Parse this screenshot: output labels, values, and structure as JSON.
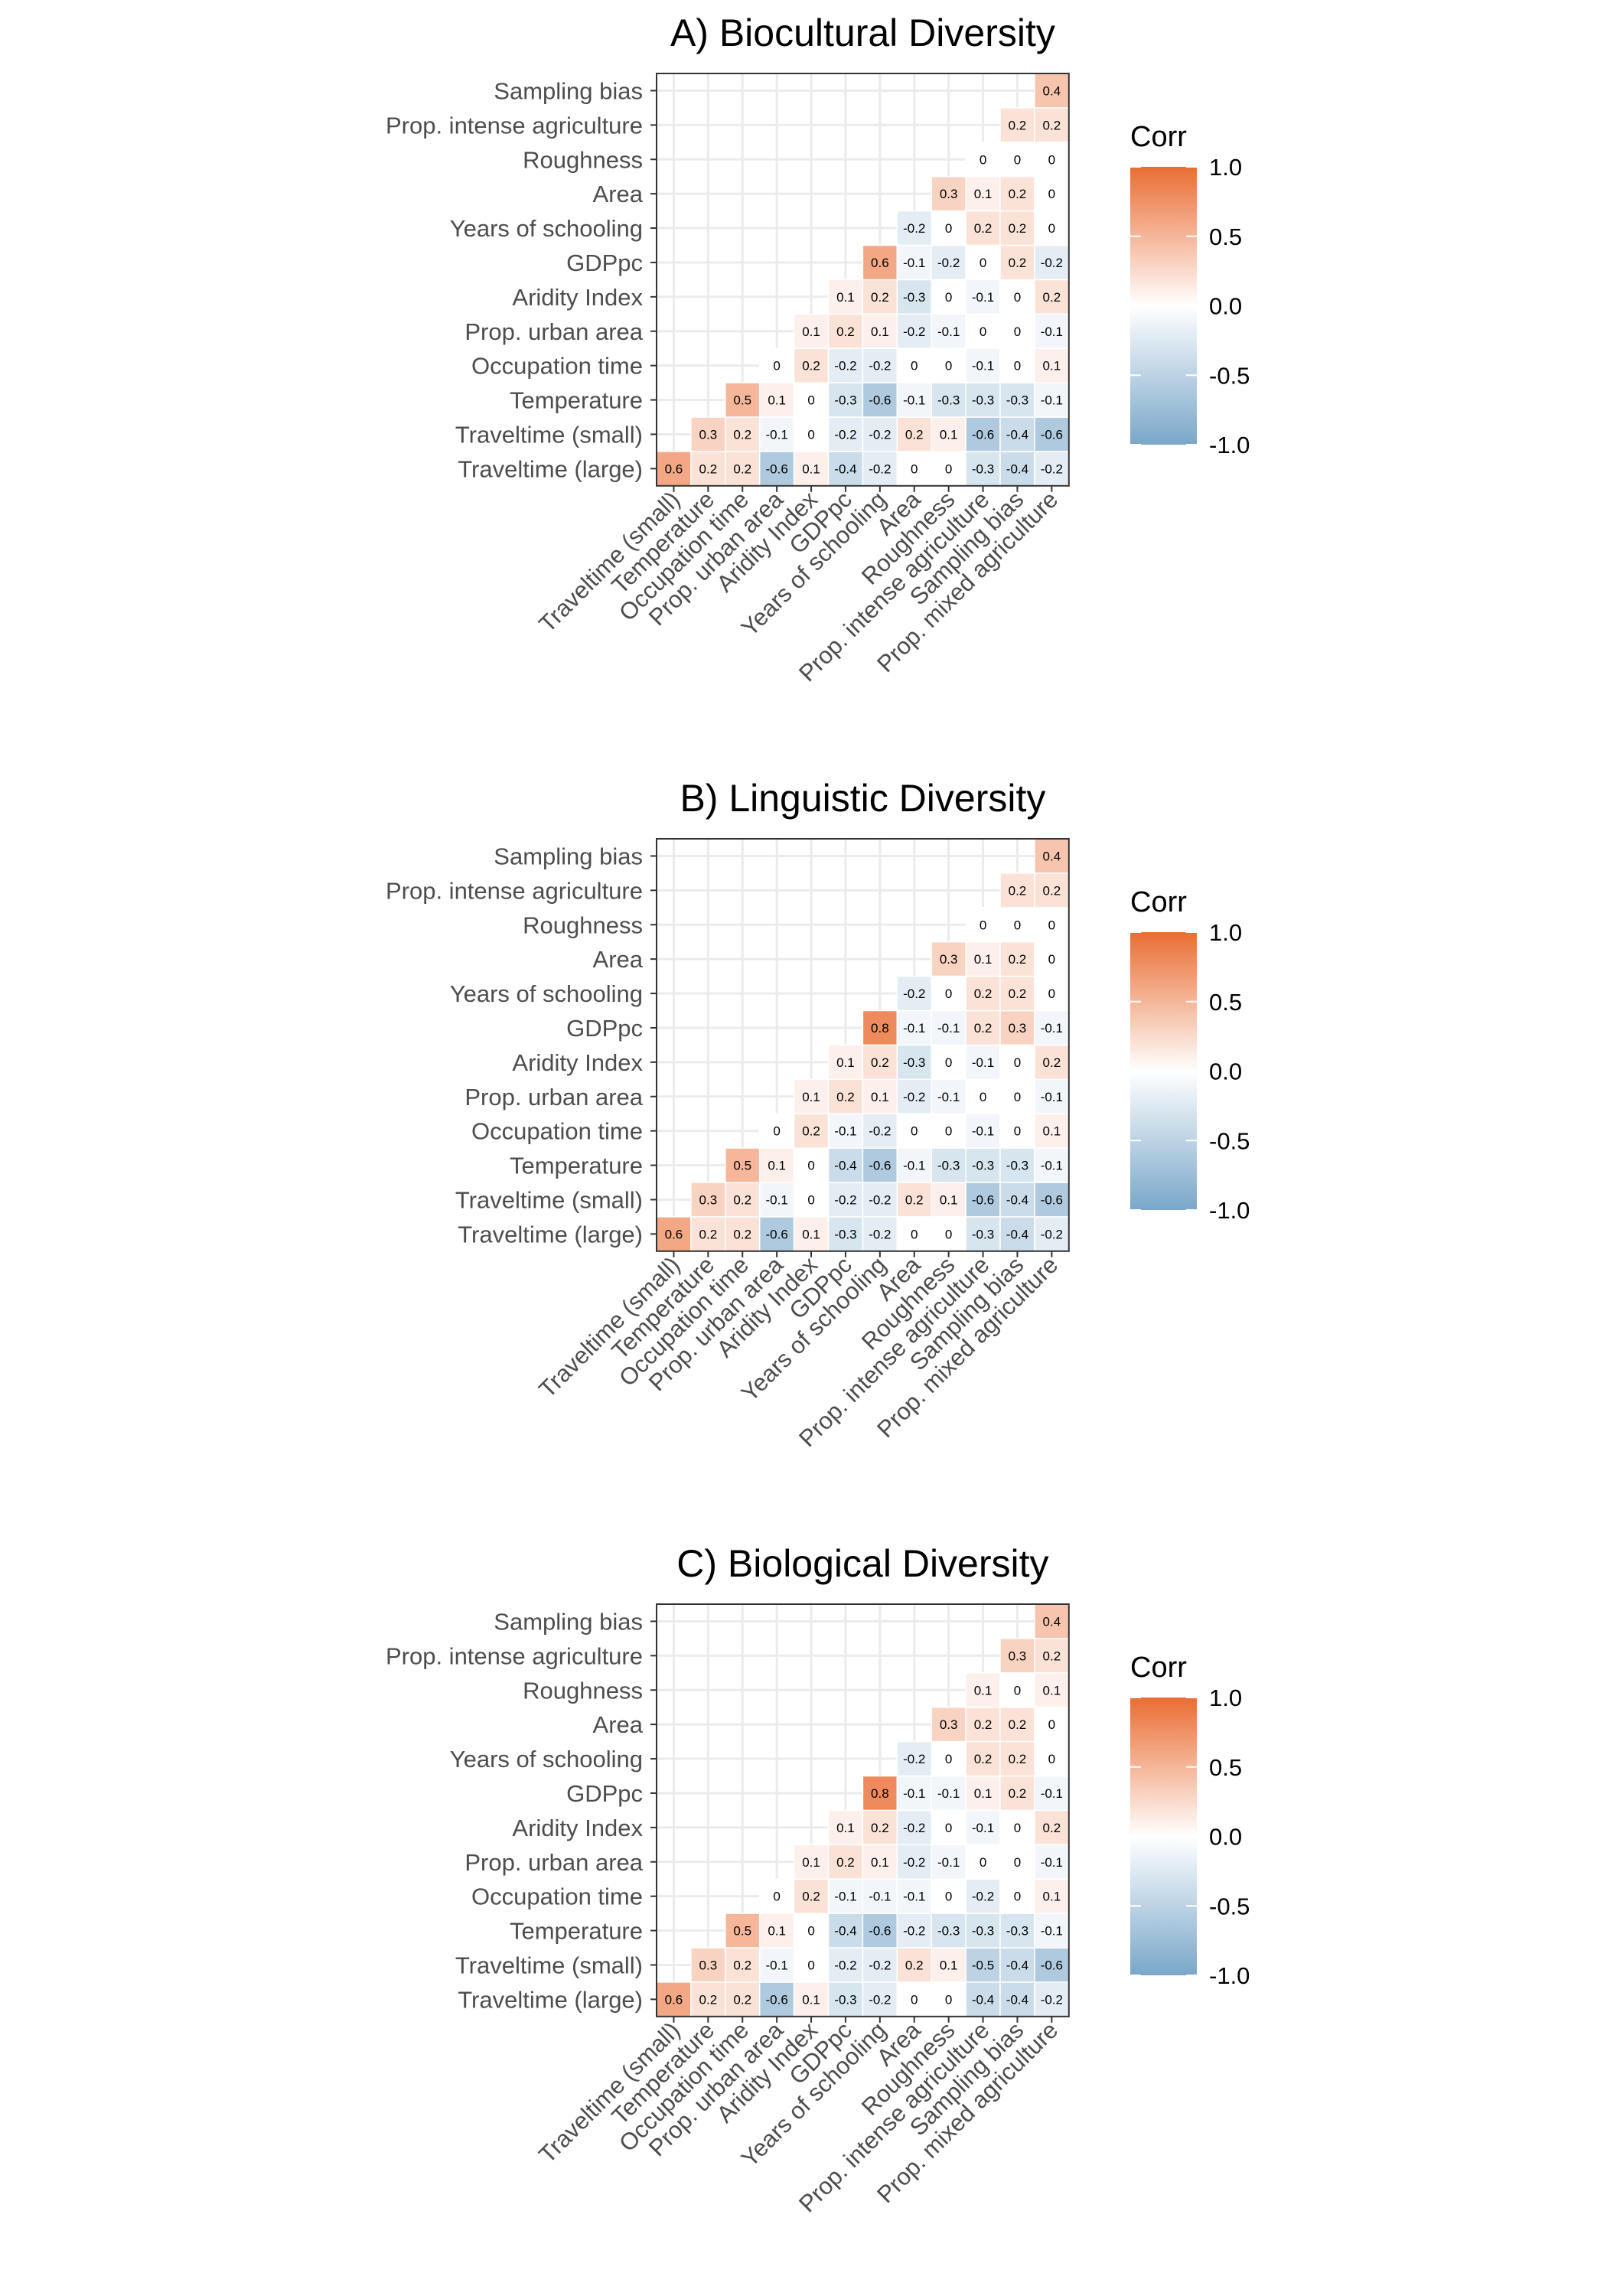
{
  "colors": {
    "negative": "#7aa7c9",
    "zero": "#ffffff",
    "positive": "#ea6d33",
    "grid": "#ebebeb",
    "panel_border": "#333333",
    "text": "#4d4d4d",
    "title": "#000000"
  },
  "chart_data": [
    {
      "type": "heatmap",
      "title": "A) Biocultural Diversity",
      "rows": [
        "Traveltime (large)",
        "Traveltime (small)",
        "Temperature",
        "Occupation time",
        "Prop. urban area",
        "Aridity Index",
        "GDPpc",
        "Years of schooling",
        "Area",
        "Roughness",
        "Prop. intense agriculture",
        "Sampling bias"
      ],
      "columns": [
        "Traveltime (small)",
        "Temperature",
        "Occupation time",
        "Prop. urban area",
        "Aridity Index",
        "GDPpc",
        "Years of schooling",
        "Area",
        "Roughness",
        "Prop. intense agriculture",
        "Sampling bias",
        "Prop. mixed agriculture"
      ],
      "values": [
        [
          0.6,
          0.2,
          0.2,
          -0.6,
          0.1,
          -0.4,
          -0.2,
          0,
          0,
          -0.3,
          -0.4,
          -0.2
        ],
        [
          null,
          0.3,
          0.2,
          -0.1,
          0,
          -0.2,
          -0.2,
          0.2,
          0.1,
          -0.6,
          -0.4,
          -0.6
        ],
        [
          null,
          null,
          0.5,
          0.1,
          0,
          -0.3,
          -0.6,
          -0.1,
          -0.3,
          -0.3,
          -0.3,
          -0.1
        ],
        [
          null,
          null,
          null,
          0,
          0.2,
          -0.2,
          -0.2,
          0,
          0,
          -0.1,
          0,
          0.1
        ],
        [
          null,
          null,
          null,
          null,
          0.1,
          0.2,
          0.1,
          -0.2,
          -0.1,
          0,
          0,
          -0.1
        ],
        [
          null,
          null,
          null,
          null,
          null,
          0.1,
          0.2,
          -0.3,
          0,
          -0.1,
          0,
          0.2
        ],
        [
          null,
          null,
          null,
          null,
          null,
          null,
          0.6,
          -0.1,
          -0.2,
          0,
          0.2,
          -0.2
        ],
        [
          null,
          null,
          null,
          null,
          null,
          null,
          null,
          -0.2,
          0,
          0.2,
          0.2,
          0
        ],
        [
          null,
          null,
          null,
          null,
          null,
          null,
          null,
          null,
          0.3,
          0.1,
          0.2,
          0
        ],
        [
          null,
          null,
          null,
          null,
          null,
          null,
          null,
          null,
          null,
          0,
          0,
          0
        ],
        [
          null,
          null,
          null,
          null,
          null,
          null,
          null,
          null,
          null,
          null,
          0.2,
          0.2
        ],
        [
          null,
          null,
          null,
          null,
          null,
          null,
          null,
          null,
          null,
          null,
          null,
          0.4
        ]
      ],
      "legend": {
        "title": "Corr",
        "ticks": [
          "1.0",
          "0.5",
          "0.0",
          "-0.5",
          "-1.0"
        ],
        "range": [
          -1,
          1
        ]
      }
    },
    {
      "type": "heatmap",
      "title": "B) Linguistic Diversity",
      "rows": [
        "Traveltime (large)",
        "Traveltime (small)",
        "Temperature",
        "Occupation time",
        "Prop. urban area",
        "Aridity Index",
        "GDPpc",
        "Years of schooling",
        "Area",
        "Roughness",
        "Prop. intense agriculture",
        "Sampling bias"
      ],
      "columns": [
        "Traveltime (small)",
        "Temperature",
        "Occupation time",
        "Prop. urban area",
        "Aridity Index",
        "GDPpc",
        "Years of schooling",
        "Area",
        "Roughness",
        "Prop. intense agriculture",
        "Sampling bias",
        "Prop. mixed agriculture"
      ],
      "values": [
        [
          0.6,
          0.2,
          0.2,
          -0.6,
          0.1,
          -0.3,
          -0.2,
          0,
          0,
          -0.3,
          -0.4,
          -0.2
        ],
        [
          null,
          0.3,
          0.2,
          -0.1,
          0,
          -0.2,
          -0.2,
          0.2,
          0.1,
          -0.6,
          -0.4,
          -0.6
        ],
        [
          null,
          null,
          0.5,
          0.1,
          0,
          -0.4,
          -0.6,
          -0.1,
          -0.3,
          -0.3,
          -0.3,
          -0.1
        ],
        [
          null,
          null,
          null,
          0,
          0.2,
          -0.1,
          -0.2,
          0,
          0,
          -0.1,
          0,
          0.1
        ],
        [
          null,
          null,
          null,
          null,
          0.1,
          0.2,
          0.1,
          -0.2,
          -0.1,
          0,
          0,
          -0.1
        ],
        [
          null,
          null,
          null,
          null,
          null,
          0.1,
          0.2,
          -0.3,
          0,
          -0.1,
          0,
          0.2
        ],
        [
          null,
          null,
          null,
          null,
          null,
          null,
          0.8,
          -0.1,
          -0.1,
          0.2,
          0.3,
          -0.1
        ],
        [
          null,
          null,
          null,
          null,
          null,
          null,
          null,
          -0.2,
          0,
          0.2,
          0.2,
          0
        ],
        [
          null,
          null,
          null,
          null,
          null,
          null,
          null,
          null,
          0.3,
          0.1,
          0.2,
          0
        ],
        [
          null,
          null,
          null,
          null,
          null,
          null,
          null,
          null,
          null,
          0,
          0,
          0
        ],
        [
          null,
          null,
          null,
          null,
          null,
          null,
          null,
          null,
          null,
          null,
          0.2,
          0.2
        ],
        [
          null,
          null,
          null,
          null,
          null,
          null,
          null,
          null,
          null,
          null,
          null,
          0.4
        ]
      ],
      "legend": {
        "title": "Corr",
        "ticks": [
          "1.0",
          "0.5",
          "0.0",
          "-0.5",
          "-1.0"
        ],
        "range": [
          -1,
          1
        ]
      }
    },
    {
      "type": "heatmap",
      "title": "C) Biological Diversity",
      "rows": [
        "Traveltime (large)",
        "Traveltime (small)",
        "Temperature",
        "Occupation time",
        "Prop. urban area",
        "Aridity Index",
        "GDPpc",
        "Years of schooling",
        "Area",
        "Roughness",
        "Prop. intense agriculture",
        "Sampling bias"
      ],
      "columns": [
        "Traveltime (small)",
        "Temperature",
        "Occupation time",
        "Prop. urban area",
        "Aridity Index",
        "GDPpc",
        "Years of schooling",
        "Area",
        "Roughness",
        "Prop. intense agriculture",
        "Sampling bias",
        "Prop. mixed agriculture"
      ],
      "values": [
        [
          0.6,
          0.2,
          0.2,
          -0.6,
          0.1,
          -0.3,
          -0.2,
          0,
          0,
          -0.4,
          -0.4,
          -0.2
        ],
        [
          null,
          0.3,
          0.2,
          -0.1,
          0,
          -0.2,
          -0.2,
          0.2,
          0.1,
          -0.5,
          -0.4,
          -0.6
        ],
        [
          null,
          null,
          0.5,
          0.1,
          0,
          -0.4,
          -0.6,
          -0.2,
          -0.3,
          -0.3,
          -0.3,
          -0.1
        ],
        [
          null,
          null,
          null,
          0,
          0.2,
          -0.1,
          -0.1,
          -0.1,
          0,
          -0.2,
          0,
          0.1
        ],
        [
          null,
          null,
          null,
          null,
          0.1,
          0.2,
          0.1,
          -0.2,
          -0.1,
          0,
          0,
          -0.1
        ],
        [
          null,
          null,
          null,
          null,
          null,
          0.1,
          0.2,
          -0.2,
          0,
          -0.1,
          0,
          0.2
        ],
        [
          null,
          null,
          null,
          null,
          null,
          null,
          0.8,
          -0.1,
          -0.1,
          0.1,
          0.2,
          -0.1
        ],
        [
          null,
          null,
          null,
          null,
          null,
          null,
          null,
          -0.2,
          0,
          0.2,
          0.2,
          0
        ],
        [
          null,
          null,
          null,
          null,
          null,
          null,
          null,
          null,
          0.3,
          0.2,
          0.2,
          0
        ],
        [
          null,
          null,
          null,
          null,
          null,
          null,
          null,
          null,
          null,
          0.1,
          0,
          0.1
        ],
        [
          null,
          null,
          null,
          null,
          null,
          null,
          null,
          null,
          null,
          null,
          0.3,
          0.2
        ],
        [
          null,
          null,
          null,
          null,
          null,
          null,
          null,
          null,
          null,
          null,
          null,
          0.4
        ]
      ],
      "legend": {
        "title": "Corr",
        "ticks": [
          "1.0",
          "0.5",
          "0.0",
          "-0.5",
          "-1.0"
        ],
        "range": [
          -1,
          1
        ]
      }
    }
  ]
}
